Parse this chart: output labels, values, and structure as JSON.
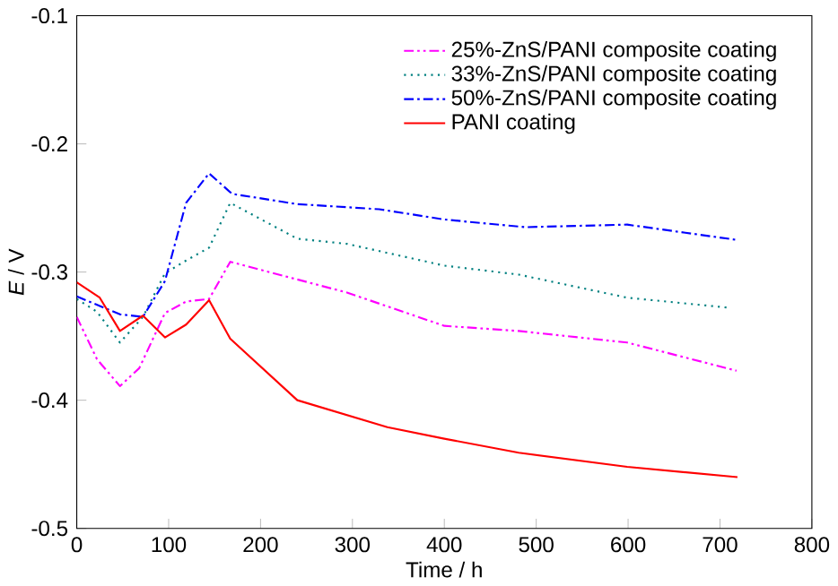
{
  "chart_data": {
    "type": "line",
    "xlabel": "Time / h",
    "ylabel": "*E* / V",
    "xlim": [
      0,
      800
    ],
    "ylim": [
      -0.5,
      -0.1
    ],
    "xticks": [
      0,
      100,
      200,
      300,
      400,
      500,
      600,
      700,
      800
    ],
    "yticks": [
      -0.5,
      -0.4,
      -0.3,
      -0.2,
      -0.1
    ],
    "grid": false,
    "legend": "top right",
    "marker": "none",
    "series": [
      {
        "name": "25%-ZnS/PANI composite coating",
        "color": "#ff00ff",
        "line_style": "dashdotdotted",
        "x": [
          0,
          22,
          47,
          68,
          96,
          119,
          144,
          167,
          294,
          400,
          481,
          599,
          718
        ],
        "values": [
          -0.335,
          -0.368,
          -0.389,
          -0.375,
          -0.332,
          -0.323,
          -0.321,
          -0.292,
          -0.316,
          -0.342,
          -0.346,
          -0.355,
          -0.377
        ]
      },
      {
        "name": "33%-ZnS/PANI composite coating",
        "color": "#008080",
        "line_style": "dotted",
        "x": [
          0,
          22,
          47,
          72,
          96,
          119,
          144,
          167,
          240,
          294,
          400,
          481,
          599,
          712
        ],
        "values": [
          -0.321,
          -0.331,
          -0.355,
          -0.335,
          -0.301,
          -0.291,
          -0.281,
          -0.246,
          -0.274,
          -0.278,
          -0.295,
          -0.302,
          -0.32,
          -0.328
        ]
      },
      {
        "name": "50%-ZnS/PANI composite coating",
        "color": "#0000ff",
        "line_style": "dashdotted",
        "x": [
          0,
          47,
          72,
          96,
          119,
          144,
          169,
          240,
          329,
          400,
          488,
          599,
          719
        ],
        "values": [
          -0.319,
          -0.333,
          -0.335,
          -0.307,
          -0.246,
          -0.223,
          -0.239,
          -0.247,
          -0.251,
          -0.259,
          -0.265,
          -0.263,
          -0.275
        ]
      },
      {
        "name": "PANI coating",
        "color": "#ff0000",
        "line_style": "solid",
        "x": [
          0,
          25,
          47,
          72,
          96,
          119,
          144,
          167,
          240,
          338,
          400,
          481,
          599,
          719
        ],
        "values": [
          -0.308,
          -0.32,
          -0.346,
          -0.334,
          -0.351,
          -0.341,
          -0.322,
          -0.352,
          -0.4,
          -0.421,
          -0.43,
          -0.441,
          -0.452,
          -0.46
        ]
      }
    ]
  }
}
